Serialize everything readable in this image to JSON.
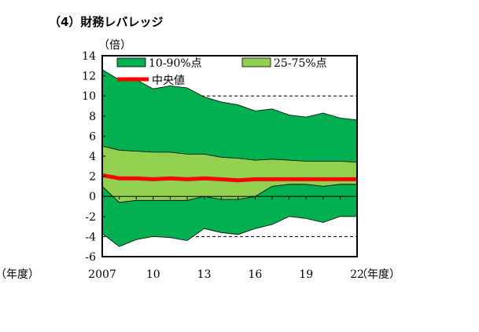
{
  "chart_data": {
    "type": "area",
    "title": "（4）財務レバレッジ",
    "yunit": "（倍）",
    "xunit": "（年度）",
    "xunit_left": "（年度）",
    "ylim": [
      -6,
      14
    ],
    "yticks": [
      14,
      12,
      10,
      8,
      6,
      4,
      2,
      0,
      -2,
      -4,
      -6
    ],
    "xlim": [
      2007,
      2022
    ],
    "xtick_values": [
      2007,
      2010,
      2013,
      2016,
      2019,
      2022
    ],
    "xtick_labels": [
      "2007",
      "10",
      "13",
      "16",
      "19",
      "22"
    ],
    "grid": "dashed horizontal at 10 and -4",
    "legend": [
      {
        "name": "10-90%点",
        "color": "#00b050"
      },
      {
        "name": "25-75%点",
        "color": "#92d050"
      },
      {
        "name": "中央値",
        "color": "#ff0000"
      }
    ],
    "x": [
      2007,
      2008,
      2009,
      2010,
      2011,
      2012,
      2013,
      2014,
      2015,
      2016,
      2017,
      2018,
      2019,
      2020,
      2021,
      2022
    ],
    "series": [
      {
        "name": "10-90%点",
        "lower": [
          -3.7,
          -5.0,
          -4.3,
          -4.0,
          -4.1,
          -4.4,
          -3.2,
          -3.6,
          -3.8,
          -3.2,
          -2.8,
          -2.0,
          -2.2,
          -2.6,
          -2.0,
          -2.0
        ],
        "upper": [
          12.6,
          11.6,
          11.6,
          10.7,
          11.0,
          10.8,
          9.9,
          9.4,
          9.1,
          8.5,
          8.7,
          8.1,
          7.9,
          8.3,
          7.8,
          7.6
        ]
      },
      {
        "name": "25-75%点",
        "lower": [
          1.0,
          -0.6,
          -0.4,
          -0.4,
          -0.4,
          -0.4,
          0.0,
          -0.3,
          -0.3,
          0.0,
          1.0,
          1.2,
          1.2,
          1.0,
          1.2,
          1.2
        ],
        "upper": [
          5.0,
          4.6,
          4.5,
          4.4,
          4.4,
          4.2,
          4.2,
          3.9,
          3.8,
          3.6,
          3.7,
          3.6,
          3.5,
          3.5,
          3.5,
          3.4
        ]
      },
      {
        "name": "中央値",
        "values": [
          2.1,
          1.8,
          1.8,
          1.7,
          1.8,
          1.7,
          1.8,
          1.7,
          1.6,
          1.7,
          1.7,
          1.7,
          1.7,
          1.7,
          1.7,
          1.7
        ]
      }
    ],
    "colors": {
      "outer": "#00b050",
      "inner": "#92d050",
      "median": "#ff0000",
      "grid": "#000000"
    }
  }
}
